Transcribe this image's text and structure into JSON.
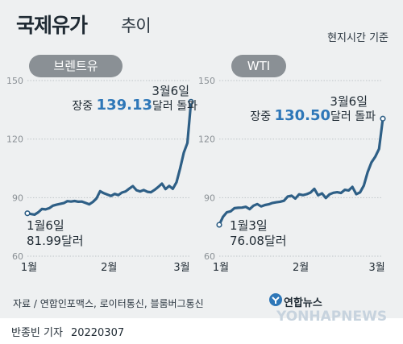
{
  "title": "국제유가",
  "subtitle": "추이",
  "basis": "현지시간 기준",
  "source": "자료 / 연합인포맥스, 로이터통신, 블룸버그통신",
  "logo_text": "연합뉴스",
  "watermark": "YONHAPNEWS",
  "byline": {
    "reporter": "반종빈 기자",
    "date": "20220307"
  },
  "colors": {
    "line": "#2e5f86",
    "accent": "#2e77b8",
    "grid": "#bfc4c8"
  },
  "chart_data": [
    {
      "type": "line",
      "label": "브렌트유",
      "y_ticks": [
        150,
        120,
        90,
        60
      ],
      "ylim": [
        60,
        150
      ],
      "x_ticks": [
        {
          "x": 1,
          "label": "1월"
        },
        {
          "x": 23,
          "label": "2월"
        },
        {
          "x": 43,
          "label": "3월"
        }
      ],
      "xlim": [
        1,
        46
      ],
      "x": [
        1,
        2,
        3,
        4,
        5,
        6,
        7,
        8,
        9,
        10,
        11,
        12,
        13,
        14,
        15,
        16,
        17,
        18,
        19,
        20,
        21,
        22,
        23,
        24,
        25,
        26,
        27,
        28,
        29,
        30,
        31,
        32,
        33,
        34,
        35,
        36,
        37,
        38,
        39,
        40,
        41,
        42,
        43,
        44,
        45,
        46
      ],
      "values": [
        81.99,
        81.6,
        81.3,
        82.5,
        84.2,
        84.0,
        84.6,
        85.9,
        86.4,
        86.8,
        87.2,
        88.2,
        88.0,
        88.3,
        87.9,
        88.0,
        87.3,
        86.6,
        87.8,
        89.6,
        93.3,
        92.3,
        91.6,
        90.9,
        91.9,
        91.3,
        92.6,
        93.2,
        94.6,
        95.9,
        93.8,
        93.2,
        93.9,
        93.0,
        92.8,
        94.0,
        95.5,
        97.2,
        94.4,
        96.0,
        94.5,
        97.9,
        105.0,
        113.0,
        118.0,
        139.13
      ],
      "start_label": {
        "date": "1월6일",
        "value": "81.99달러"
      },
      "end_label": {
        "date": "3월6일",
        "prefix": "장중",
        "value": "139.13",
        "suffix": "달러 돌파"
      }
    },
    {
      "type": "line",
      "label": "WTI",
      "y_ticks": [
        150,
        120,
        90,
        60
      ],
      "ylim": [
        60,
        150
      ],
      "x_ticks": [
        {
          "x": 1,
          "label": "1월"
        },
        {
          "x": 22,
          "label": "2월"
        },
        {
          "x": 42,
          "label": "3월"
        }
      ],
      "xlim": [
        1,
        44
      ],
      "x": [
        1,
        2,
        3,
        4,
        5,
        6,
        7,
        8,
        9,
        10,
        11,
        12,
        13,
        14,
        15,
        16,
        17,
        18,
        19,
        20,
        21,
        22,
        23,
        24,
        25,
        26,
        27,
        28,
        29,
        30,
        31,
        32,
        33,
        34,
        35,
        36,
        37,
        38,
        39,
        40,
        41,
        42,
        43,
        44
      ],
      "values": [
        76.08,
        80.2,
        82.5,
        83.0,
        84.6,
        84.8,
        84.9,
        85.3,
        84.1,
        85.9,
        86.7,
        85.5,
        86.2,
        86.6,
        87.3,
        87.6,
        87.9,
        88.4,
        90.6,
        91.0,
        89.5,
        91.7,
        91.3,
        91.8,
        92.6,
        94.5,
        91.2,
        92.2,
        89.8,
        91.7,
        92.5,
        92.8,
        92.4,
        94.0,
        93.7,
        95.5,
        91.8,
        92.7,
        96.2,
        103.0,
        108.0,
        111.0,
        115.0,
        130.5
      ],
      "start_label": {
        "date": "1월3일",
        "value": "76.08달러"
      },
      "end_label": {
        "date": "3월6일",
        "prefix": "장중",
        "value": "130.50",
        "suffix": "달러 돌파"
      }
    }
  ]
}
